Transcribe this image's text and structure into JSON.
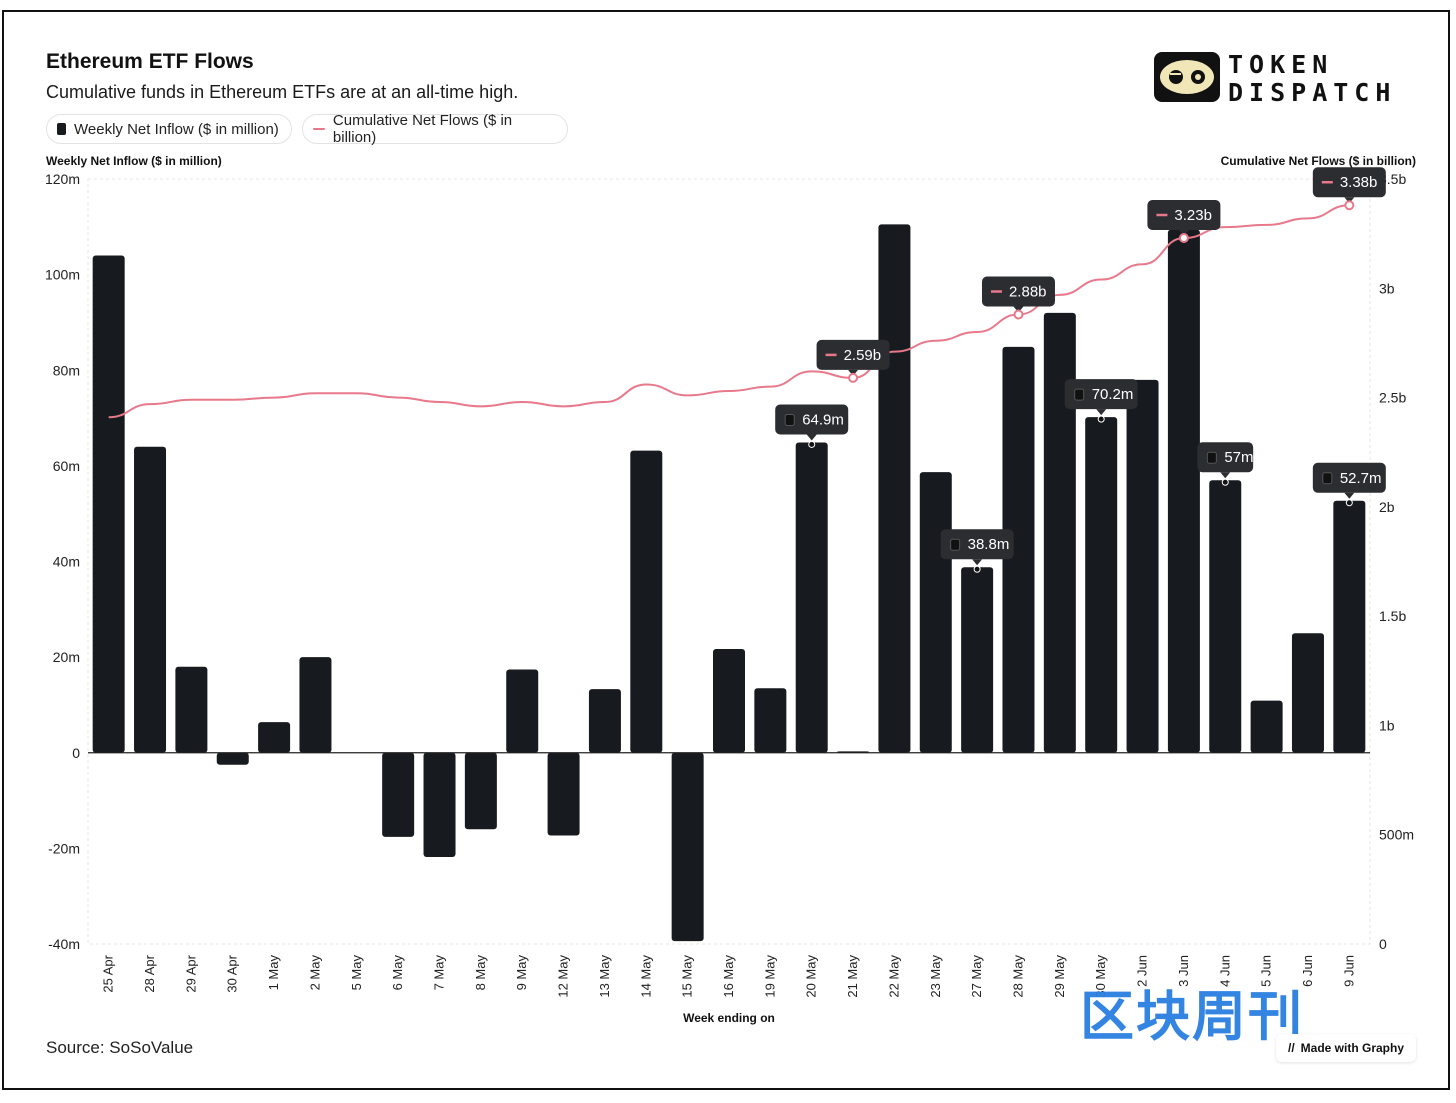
{
  "header": {
    "title": "Ethereum ETF Flows",
    "subtitle": "Cumulative funds in Ethereum ETFs are at an all-time high."
  },
  "brand": {
    "line1": "TOKEN",
    "line2": "DISPATCH"
  },
  "footer": {
    "source": "Source: SoSoValue",
    "made_with": "Made with Graphy",
    "watermark": "区块周刊"
  },
  "colors": {
    "bar": "#171a1f",
    "line": "#e8798b",
    "tooltip_bg": "#2b2d31"
  },
  "chart_data": {
    "type": "bar",
    "combo": "bar+line (dual axis)",
    "title": "Ethereum ETF Flows",
    "subtitle": "Cumulative funds in Ethereum ETFs are at an all-time high.",
    "xlabel": "Week ending on",
    "ylabel_left": "Weekly Net Inflow ($ in million)",
    "ylabel_right": "Cumulative Net Flows ($ in billion)",
    "legend_position": "top-left",
    "grid": false,
    "categories": [
      "25 Apr",
      "28 Apr",
      "29 Apr",
      "30 Apr",
      "1 May",
      "2 May",
      "5 May",
      "6 May",
      "7 May",
      "8 May",
      "9 May",
      "12 May",
      "13 May",
      "14 May",
      "15 May",
      "16 May",
      "19 May",
      "20 May",
      "21 May",
      "22 May",
      "23 May",
      "27 May",
      "28 May",
      "29 May",
      "30 May",
      "2 Jun",
      "3 Jun",
      "4 Jun",
      "5 Jun",
      "6 Jun",
      "9 Jun"
    ],
    "series": [
      {
        "name": "Weekly Net Inflow ($ in million)",
        "type": "bar",
        "axis": "left",
        "values": [
          104,
          64,
          18,
          -2.5,
          6.4,
          20,
          0,
          -17.6,
          -21.8,
          -16,
          17.4,
          -17.3,
          13.3,
          63.2,
          -39.4,
          21.7,
          13.5,
          64.9,
          0.3,
          110.5,
          58.7,
          38.8,
          84.9,
          92,
          70.2,
          78,
          109.4,
          57,
          10.9,
          25,
          52.7
        ]
      },
      {
        "name": "Cumulative Net Flows ($ in billion)",
        "type": "line",
        "axis": "right",
        "values": [
          2.41,
          2.47,
          2.49,
          2.49,
          2.5,
          2.52,
          2.52,
          2.5,
          2.48,
          2.46,
          2.48,
          2.46,
          2.48,
          2.56,
          2.51,
          2.53,
          2.55,
          2.62,
          2.59,
          2.71,
          2.76,
          2.8,
          2.88,
          2.97,
          3.04,
          3.11,
          3.23,
          3.28,
          3.29,
          3.32,
          3.38
        ]
      }
    ],
    "ylim_left": [
      -40,
      120
    ],
    "ylim_right": [
      0,
      3.5
    ],
    "yticks_left": [
      {
        "v": 120,
        "label": "120m"
      },
      {
        "v": 100,
        "label": "100m"
      },
      {
        "v": 80,
        "label": "80m"
      },
      {
        "v": 60,
        "label": "60m"
      },
      {
        "v": 40,
        "label": "40m"
      },
      {
        "v": 20,
        "label": "20m"
      },
      {
        "v": 0,
        "label": "0"
      },
      {
        "v": -20,
        "label": "-20m"
      },
      {
        "v": -40,
        "label": "-40m"
      }
    ],
    "yticks_right": [
      {
        "v": 3.5,
        "label": "3.5b"
      },
      {
        "v": 3,
        "label": "3b"
      },
      {
        "v": 2.5,
        "label": "2.5b"
      },
      {
        "v": 2,
        "label": "2b"
      },
      {
        "v": 1.5,
        "label": "1.5b"
      },
      {
        "v": 1,
        "label": "1b"
      },
      {
        "v": 0.5,
        "label": "500m"
      },
      {
        "v": 0,
        "label": "0"
      }
    ],
    "bar_labels": [
      {
        "index": 17,
        "text": "64.9m"
      },
      {
        "index": 21,
        "text": "38.8m"
      },
      {
        "index": 24,
        "text": "70.2m"
      },
      {
        "index": 27,
        "text": "57m"
      },
      {
        "index": 30,
        "text": "52.7m"
      }
    ],
    "line_labels": [
      {
        "index": 18,
        "text": "2.59b"
      },
      {
        "index": 22,
        "text": "2.88b"
      },
      {
        "index": 26,
        "text": "3.23b"
      },
      {
        "index": 30,
        "text": "3.38b"
      }
    ]
  }
}
